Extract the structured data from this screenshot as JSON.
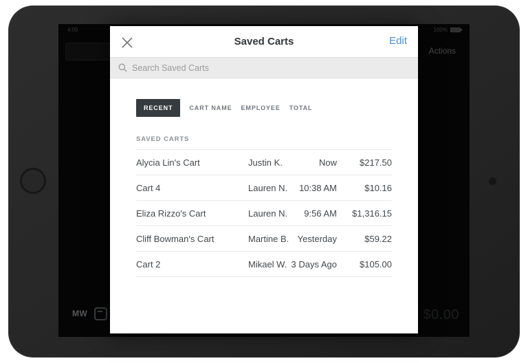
{
  "device": {
    "status_left": "4:05",
    "status_right_percent": "100%"
  },
  "background_app": {
    "actions_label": "Actions",
    "employee_initials": "MW",
    "total_display": "$0.00"
  },
  "modal": {
    "title": "Saved Carts",
    "edit_label": "Edit",
    "search": {
      "placeholder": "Search Saved Carts",
      "icon": "search-icon"
    },
    "tabs": [
      {
        "label": "RECENT",
        "active": true
      },
      {
        "label": "CART NAME",
        "active": false
      },
      {
        "label": "EMPLOYEE",
        "active": false
      },
      {
        "label": "TOTAL",
        "active": false
      }
    ],
    "section_label": "SAVED CARTS",
    "columns": [
      "name",
      "employee",
      "time",
      "total"
    ],
    "carts": [
      {
        "name": "Alycia Lin's Cart",
        "employee": "Justin K.",
        "time": "Now",
        "total": "$217.50"
      },
      {
        "name": "Cart 4",
        "employee": "Lauren N.",
        "time": "10:38 AM",
        "total": "$10.16"
      },
      {
        "name": "Eliza Rizzo's Cart",
        "employee": "Lauren N.",
        "time": "9:56 AM",
        "total": "$1,316.15"
      },
      {
        "name": "Cliff Bowman's Cart",
        "employee": "Martine B.",
        "time": "Yesterday",
        "total": "$59.22"
      },
      {
        "name": "Cart 2",
        "employee": "Mikael W.",
        "time": "3 Days Ago",
        "total": "$105.00"
      }
    ]
  },
  "colors": {
    "accent_blue": "#4a90d2",
    "tab_active_bg": "#363b40",
    "frame": "#262626",
    "screen": "#050505",
    "search_strip_bg": "#ebebeb"
  }
}
